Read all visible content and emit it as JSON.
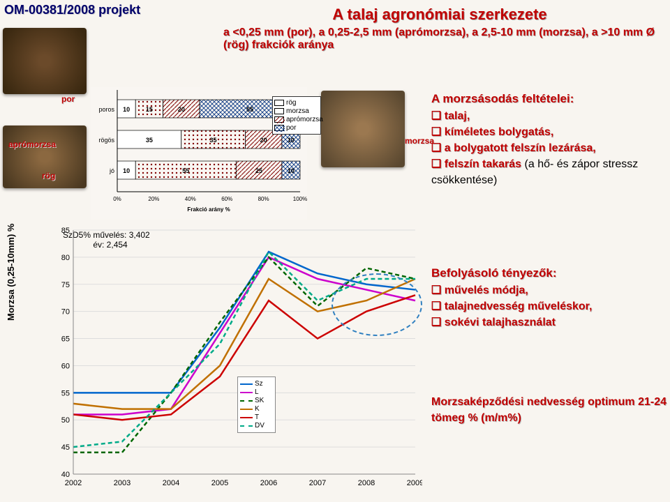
{
  "project": "OM-00381/2008 projekt",
  "title": "A talaj agronómiai szerkezete",
  "subtitle": "a <0,25 mm (por), a 0,25-2,5 mm (aprómorzsa), a 2,5-10 mm (morzsa), a >10 mm Ø (rög) frakciók aránya",
  "photo_labels": {
    "por": "por",
    "apromorzsa": "aprómorzsa",
    "rog": "rög",
    "morzsa": "morzsa"
  },
  "barchart": {
    "categories": [
      "poros",
      "rögös",
      "jó"
    ],
    "xticks": [
      "0%",
      "20%",
      "40%",
      "60%",
      "80%",
      "100%"
    ],
    "xlabel": "Frakció arány %",
    "legend": [
      "rög",
      "morzsa",
      "aprómorzsa",
      "por"
    ],
    "data": {
      "poros": [
        10,
        15,
        20,
        55
      ],
      "rogos": [
        35,
        35,
        20,
        10
      ],
      "jo": [
        10,
        55,
        25,
        10
      ]
    },
    "patterns": {
      "rog": {
        "bg": "#ffffff",
        "border": "#000"
      },
      "morzsa": {
        "bg": "#ffffff",
        "pat": "dots",
        "border": "#800000"
      },
      "apro": {
        "bg": "#ffffff",
        "pat": "diag",
        "border": "#800000"
      },
      "por": {
        "bg": "#ffffff",
        "pat": "x",
        "border": "#003080"
      }
    }
  },
  "szd_text": "SzD5% művelés: 3,402\n             év: 2,454",
  "linechart": {
    "ylabel": "Morzsa (0,25-10mm) %",
    "ylim": [
      40,
      85
    ],
    "ytick_step": 5,
    "xticks": [
      "2002",
      "2003",
      "2004",
      "2005",
      "2006",
      "2007",
      "2008",
      "2009"
    ],
    "series": [
      {
        "name": "Sz",
        "color": "#0066cc",
        "dash": "",
        "vals": [
          55,
          55,
          55,
          67,
          81,
          77,
          75,
          74
        ]
      },
      {
        "name": "L",
        "color": "#cc00cc",
        "dash": "",
        "vals": [
          51,
          51,
          52,
          66,
          80,
          76,
          74,
          72
        ]
      },
      {
        "name": "SK",
        "color": "#006600",
        "dash": "6,4",
        "vals": [
          44,
          44,
          55,
          68,
          80,
          71,
          78,
          76
        ]
      },
      {
        "name": "K",
        "color": "#c07000",
        "dash": "",
        "vals": [
          53,
          52,
          52,
          60,
          76,
          70,
          72,
          76
        ]
      },
      {
        "name": "T",
        "color": "#cc0000",
        "dash": "",
        "vals": [
          51,
          50,
          51,
          58,
          72,
          65,
          70,
          73
        ]
      },
      {
        "name": "DV",
        "color": "#00aa88",
        "dash": "6,4",
        "vals": [
          45,
          46,
          55,
          64,
          81,
          72,
          76,
          76
        ]
      }
    ],
    "legend_order": [
      "Sz",
      "L",
      "SK",
      "K",
      "T",
      "DV"
    ]
  },
  "right1": {
    "heading": "A morzsásodás feltételei:",
    "items": [
      "talaj,",
      "kíméletes bolygatás,",
      "a bolygatott felszín lezárása,",
      "felszín takarás"
    ],
    "black_tail": " (a hő- és zápor stressz csökkentése)"
  },
  "right2": {
    "heading": "Befolyásoló tényezők:",
    "items": [
      "művelés módja,",
      "talajnedvesség műveléskor,",
      "sokévi talajhasználat"
    ]
  },
  "right3": "Morzsaképződési nedvesség optimum 21-24 tömeg % (m/m%)"
}
